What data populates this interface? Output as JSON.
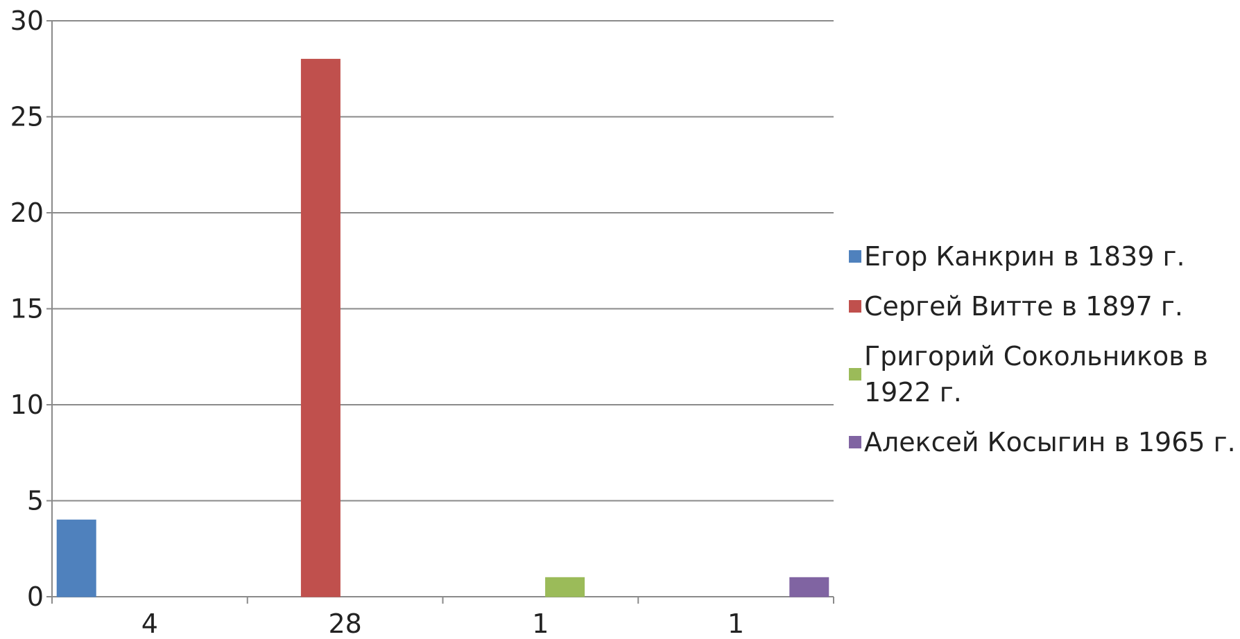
{
  "chart_data": {
    "type": "bar",
    "categories": [
      "4",
      "28",
      "1",
      "1"
    ],
    "values": [
      4,
      28,
      1,
      1
    ],
    "series": [
      {
        "name": "Егор Канкрин в 1839 г.",
        "values": [
          4,
          null,
          null,
          null
        ],
        "color": "#4F81BD"
      },
      {
        "name": "Сергей Витте в 1897 г.",
        "values": [
          null,
          28,
          null,
          null
        ],
        "color": "#C0504D"
      },
      {
        "name": "Григорий Сокольников в 1922 г.",
        "values": [
          null,
          null,
          1,
          null
        ],
        "color": "#9BBB59"
      },
      {
        "name": "Алексей Косыгин в 1965 г.",
        "values": [
          null,
          null,
          null,
          1
        ],
        "color": "#8064A2"
      }
    ],
    "title": "",
    "xlabel": "",
    "ylabel": "",
    "ylim": [
      0,
      30
    ],
    "yticks": [
      "0",
      "5",
      "10",
      "15",
      "20",
      "25",
      "30"
    ],
    "grid": true,
    "legend_position": "right"
  }
}
